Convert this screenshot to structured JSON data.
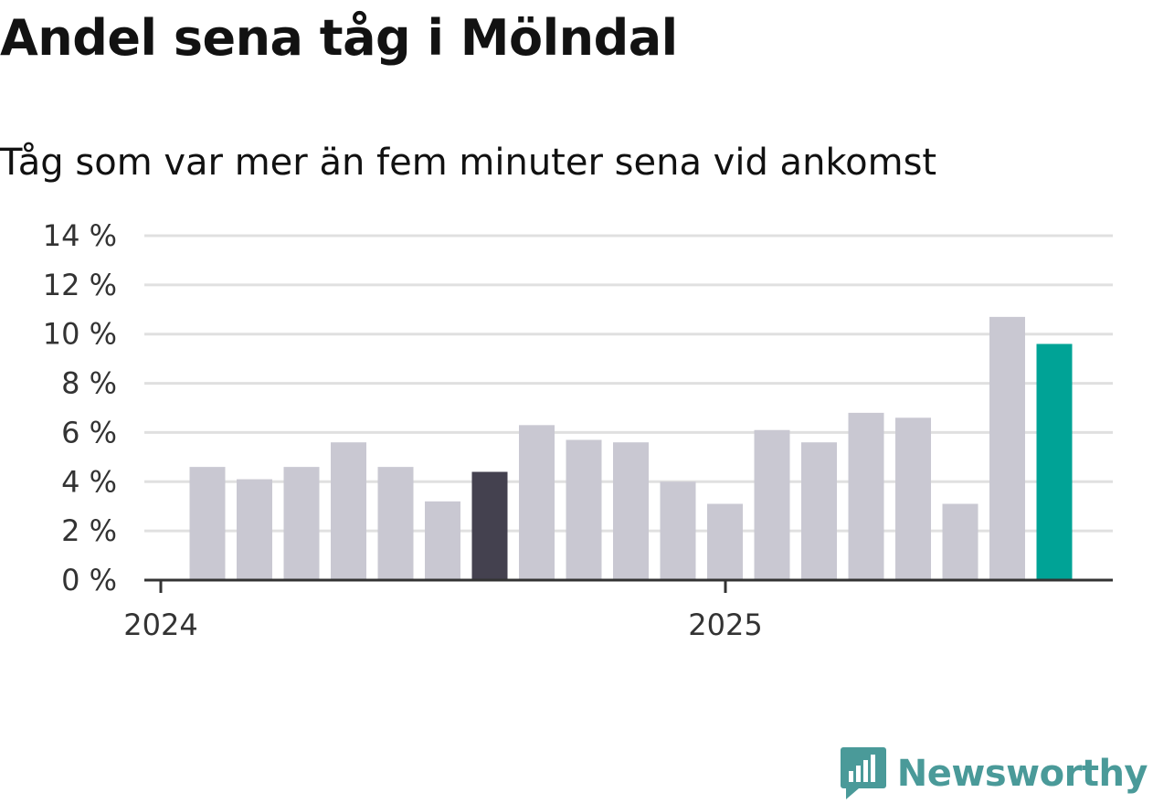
{
  "title": "Andel sena tåg i Mölndal",
  "subtitle": "Tåg som var mer än fem minuter sena vid ankomst",
  "brand": {
    "name": "Newsworthy",
    "icon": "newsworthy-logo-icon"
  },
  "colors": {
    "bar_default": "#c9c8d2",
    "bar_highlight_dark": "#44414f",
    "bar_highlight_latest": "#00a396",
    "gridline": "#e0e0e0",
    "baseline": "#333333",
    "brand": "#4a9a99"
  },
  "chart_data": {
    "type": "bar",
    "x": [
      "2024-01",
      "2024-02",
      "2024-03",
      "2024-04",
      "2024-05",
      "2024-06",
      "2024-07",
      "2024-08",
      "2024-09",
      "2024-10",
      "2024-11",
      "2024-12",
      "2025-01",
      "2025-02",
      "2025-03",
      "2025-04",
      "2025-05",
      "2025-06",
      "2025-07"
    ],
    "values": [
      4.6,
      4.1,
      4.6,
      5.6,
      4.6,
      3.2,
      4.4,
      6.3,
      5.7,
      5.6,
      4.0,
      3.1,
      6.1,
      5.6,
      6.8,
      6.6,
      3.1,
      10.7,
      9.6
    ],
    "highlight": {
      "dark": [
        "2024-07"
      ],
      "latest": [
        "2025-07"
      ]
    },
    "unit": "%",
    "ylim": [
      0,
      14
    ],
    "yticks": [
      0,
      2,
      4,
      6,
      8,
      10,
      12,
      14
    ],
    "ytick_labels": [
      "0 %",
      "2 %",
      "4 %",
      "6 %",
      "8 %",
      "10 %",
      "12 %",
      "14 %"
    ],
    "xticks": [
      {
        "x": "2024-01",
        "label": "2024"
      },
      {
        "x": "2025-01",
        "label": "2025"
      }
    ],
    "grid": true,
    "legend": "none"
  }
}
